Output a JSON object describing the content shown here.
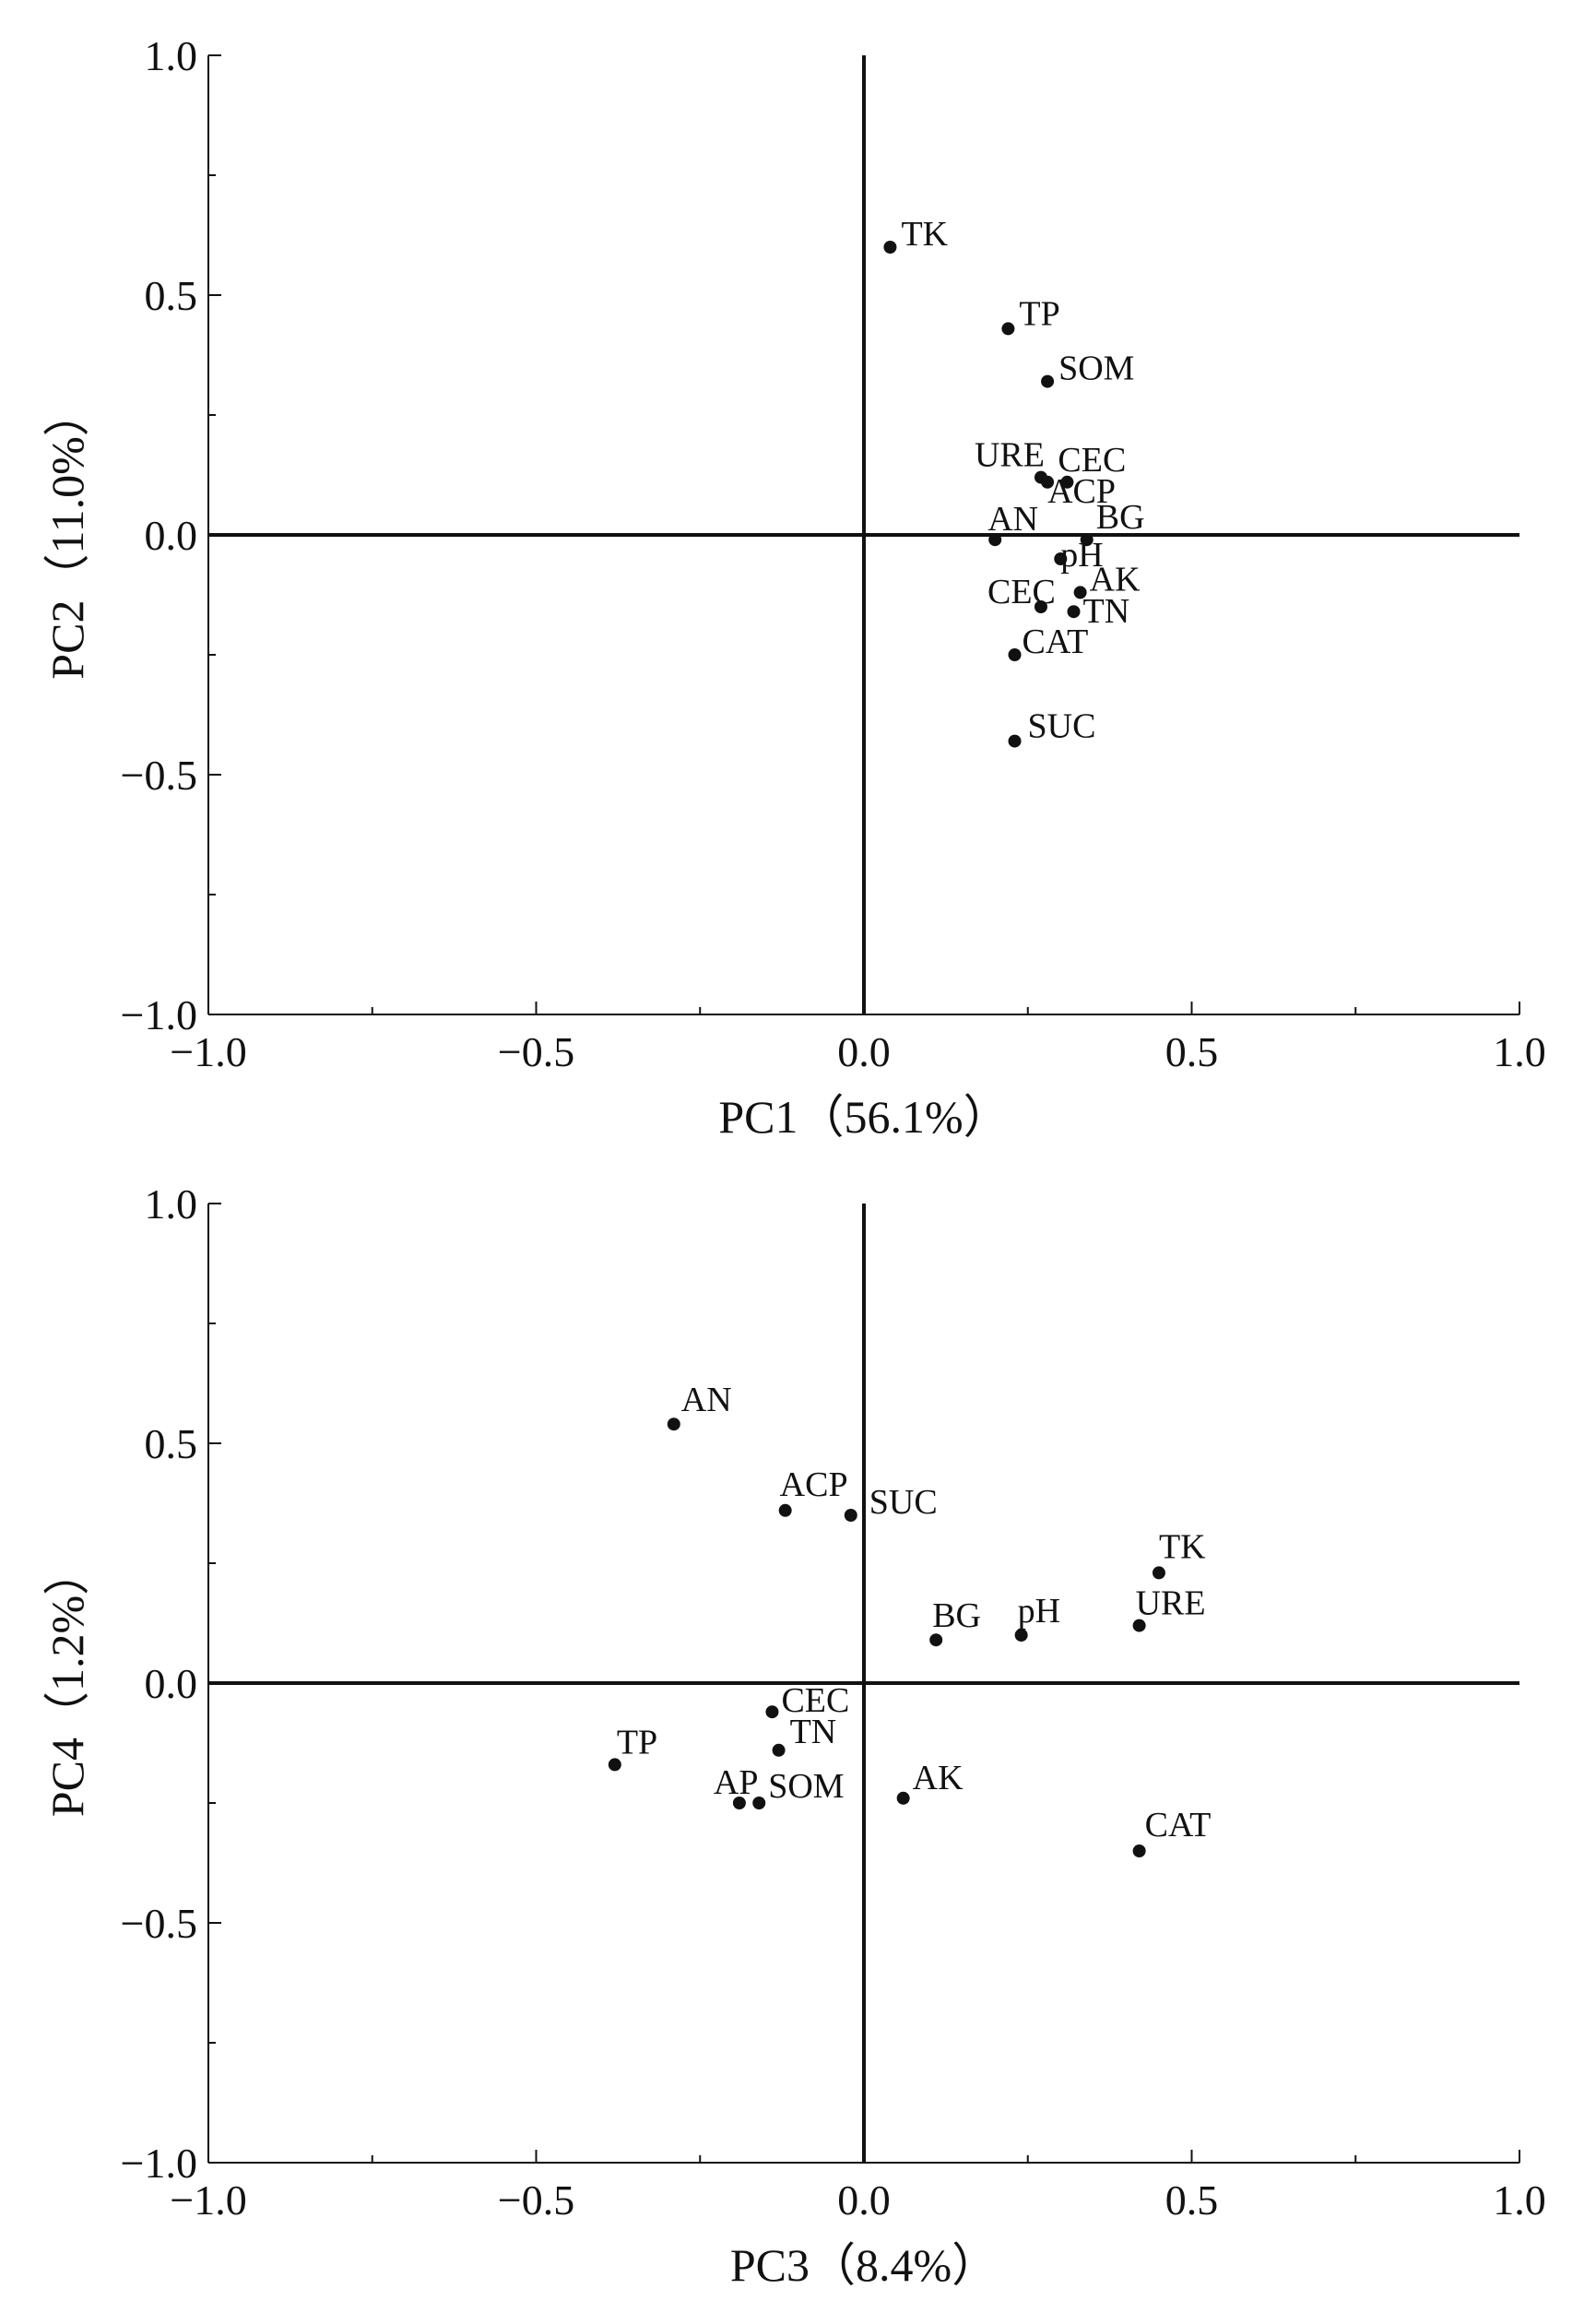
{
  "chart_data": [
    {
      "type": "scatter",
      "xlabel": "PC1（56.1%）",
      "ylabel": "PC2（11.0%）",
      "xlim": [
        -1.0,
        1.0
      ],
      "ylim": [
        -1.0,
        1.0
      ],
      "x_ticks": [
        "−1.0",
        "−0.5",
        "0.0",
        "0.5",
        "1.0"
      ],
      "y_ticks": [
        "−1.0",
        "−0.5",
        "0.0",
        "0.5",
        "1.0"
      ],
      "grid": false,
      "points": [
        {
          "label": "TK",
          "x": 0.04,
          "y": 0.6
        },
        {
          "label": "TP",
          "x": 0.22,
          "y": 0.43
        },
        {
          "label": "SOM",
          "x": 0.28,
          "y": 0.32
        },
        {
          "label": "URE",
          "x": 0.27,
          "y": 0.12
        },
        {
          "label": "CEC",
          "x": 0.31,
          "y": 0.11
        },
        {
          "label": "ACP",
          "x": 0.28,
          "y": 0.11
        },
        {
          "label": "AN",
          "x": 0.2,
          "y": -0.01
        },
        {
          "label": "BG",
          "x": 0.34,
          "y": -0.01
        },
        {
          "label": "pH",
          "x": 0.3,
          "y": -0.05
        },
        {
          "label": "AK",
          "x": 0.33,
          "y": -0.12
        },
        {
          "label": "CEC",
          "x": 0.27,
          "y": -0.15
        },
        {
          "label": "TN",
          "x": 0.32,
          "y": -0.16
        },
        {
          "label": "CAT",
          "x": 0.23,
          "y": -0.25
        },
        {
          "label": "SUC",
          "x": 0.23,
          "y": -0.43
        }
      ]
    },
    {
      "type": "scatter",
      "xlabel": "PC3（8.4%）",
      "ylabel": "PC4（1.2%）",
      "xlim": [
        -1.0,
        1.0
      ],
      "ylim": [
        -1.0,
        1.0
      ],
      "x_ticks": [
        "−1.0",
        "−0.5",
        "0.0",
        "0.5",
        "1.0"
      ],
      "y_ticks": [
        "−1.0",
        "−0.5",
        "0.0",
        "0.5",
        "1.0"
      ],
      "grid": false,
      "points": [
        {
          "label": "AN",
          "x": -0.29,
          "y": 0.54
        },
        {
          "label": "ACP",
          "x": -0.12,
          "y": 0.36
        },
        {
          "label": "SUC",
          "x": -0.02,
          "y": 0.35
        },
        {
          "label": "TK",
          "x": 0.45,
          "y": 0.23
        },
        {
          "label": "URE",
          "x": 0.42,
          "y": 0.12
        },
        {
          "label": "BG",
          "x": 0.11,
          "y": 0.09
        },
        {
          "label": "pH",
          "x": 0.24,
          "y": 0.1
        },
        {
          "label": "CEC",
          "x": -0.14,
          "y": -0.06
        },
        {
          "label": "TN",
          "x": -0.13,
          "y": -0.14
        },
        {
          "label": "TP",
          "x": -0.38,
          "y": -0.17
        },
        {
          "label": "AP",
          "x": -0.19,
          "y": -0.25
        },
        {
          "label": "SOM",
          "x": -0.16,
          "y": -0.25
        },
        {
          "label": "AK",
          "x": 0.06,
          "y": -0.24
        },
        {
          "label": "CAT",
          "x": 0.42,
          "y": -0.35
        }
      ]
    }
  ]
}
